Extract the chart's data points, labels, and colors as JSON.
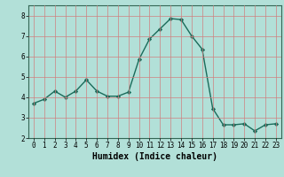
{
  "x": [
    0,
    1,
    2,
    3,
    4,
    5,
    6,
    7,
    8,
    9,
    10,
    11,
    12,
    13,
    14,
    15,
    16,
    17,
    18,
    19,
    20,
    21,
    22,
    23
  ],
  "y": [
    3.7,
    3.9,
    4.3,
    4.0,
    4.3,
    4.85,
    4.3,
    4.05,
    4.05,
    4.25,
    5.85,
    6.85,
    7.35,
    7.85,
    7.8,
    7.0,
    6.35,
    3.45,
    2.65,
    2.65,
    2.7,
    2.35,
    2.65,
    2.7
  ],
  "line_color": "#1a6b5a",
  "marker": "D",
  "markersize": 2.2,
  "linewidth": 1.0,
  "background_color": "#b2e0d8",
  "grid_color": "#d08080",
  "xlabel": "Humidex (Indice chaleur)",
  "xlabel_fontsize": 7,
  "xlim": [
    -0.5,
    23.5
  ],
  "ylim": [
    2,
    8.5
  ],
  "yticks": [
    2,
    3,
    4,
    5,
    6,
    7,
    8
  ],
  "xticks": [
    0,
    1,
    2,
    3,
    4,
    5,
    6,
    7,
    8,
    9,
    10,
    11,
    12,
    13,
    14,
    15,
    16,
    17,
    18,
    19,
    20,
    21,
    22,
    23
  ],
  "tick_fontsize": 5.5
}
